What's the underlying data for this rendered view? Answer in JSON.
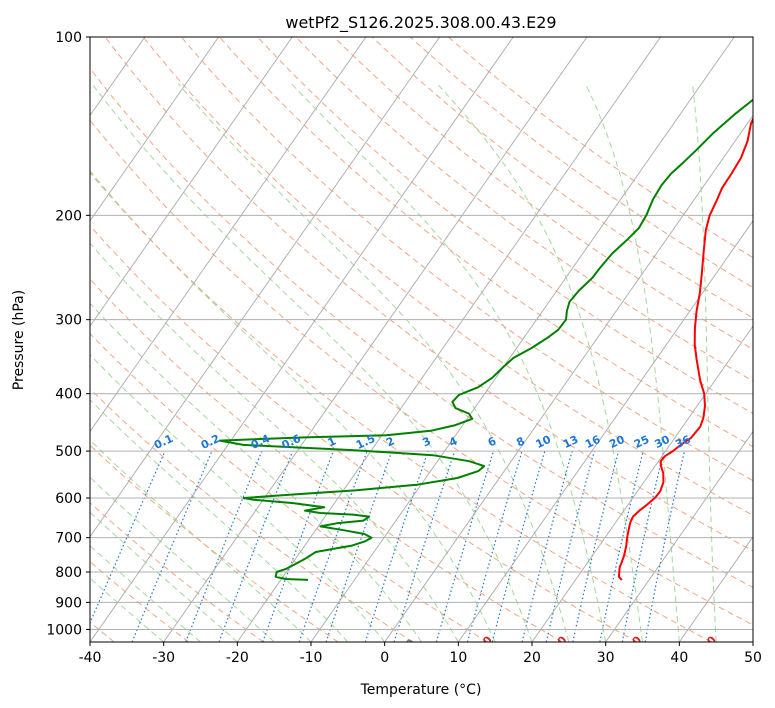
{
  "chart_data": {
    "type": "line",
    "subtype": "skew-t log-p",
    "title": "wetPf2_S126.2025.308.00.43.E29",
    "xlabel": "Temperature (°C)",
    "ylabel": "Pressure (hPa)",
    "xlim": [
      -40,
      50
    ],
    "ylim": [
      1050,
      100
    ],
    "y_scale": "log",
    "x_ticks": [
      -40,
      -30,
      -20,
      -10,
      0,
      10,
      20,
      30,
      40,
      50
    ],
    "y_ticks": [
      100,
      200,
      300,
      400,
      500,
      600,
      700,
      800,
      900,
      1000
    ],
    "grid": true,
    "series": [
      {
        "color": "#ff0000",
        "points": [
          [
            26.3,
            825
          ],
          [
            25.6,
            815
          ],
          [
            25.2,
            800
          ],
          [
            24.8,
            785
          ],
          [
            24.6,
            770
          ],
          [
            24.3,
            750
          ],
          [
            23.6,
            720
          ],
          [
            23.0,
            700
          ],
          [
            22.5,
            680
          ],
          [
            22.0,
            660
          ],
          [
            21.8,
            645
          ],
          [
            22.1,
            630
          ],
          [
            22.6,
            615
          ],
          [
            23.0,
            600
          ],
          [
            23.1,
            585
          ],
          [
            22.7,
            565
          ],
          [
            21.8,
            545
          ],
          [
            20.8,
            530
          ],
          [
            20.3,
            520
          ],
          [
            20.4,
            510
          ],
          [
            21.0,
            500
          ],
          [
            21.4,
            490
          ],
          [
            21.8,
            482
          ],
          [
            22.2,
            475
          ],
          [
            22.3,
            465
          ],
          [
            22.4,
            455
          ],
          [
            22.0,
            440
          ],
          [
            21.1,
            420
          ],
          [
            19.8,
            400
          ],
          [
            18.0,
            380
          ],
          [
            15.5,
            350
          ],
          [
            13.8,
            330
          ],
          [
            12.3,
            310
          ],
          [
            10.9,
            290
          ],
          [
            9.6,
            270
          ],
          [
            8.0,
            250
          ],
          [
            6.2,
            230
          ],
          [
            4.5,
            212
          ],
          [
            3.6,
            200
          ],
          [
            3.2,
            190
          ],
          [
            2.7,
            180
          ],
          [
            2.6,
            170
          ],
          [
            2.4,
            160
          ],
          [
            1.7,
            150
          ],
          [
            0.5,
            140
          ],
          [
            0.0,
            132
          ],
          [
            0.3,
            125
          ],
          [
            0.4,
            115
          ],
          [
            0.2,
            105
          ],
          [
            0.3,
            100
          ]
        ]
      },
      {
        "color": "#008000",
        "points": [
          [
            -16.3,
            825
          ],
          [
            -19.5,
            822
          ],
          [
            -21.0,
            815
          ],
          [
            -21.3,
            800
          ],
          [
            -20.3,
            790
          ],
          [
            -19.5,
            775
          ],
          [
            -18.7,
            760
          ],
          [
            -18.3,
            750
          ],
          [
            -17.9,
            740
          ],
          [
            -15.6,
            730
          ],
          [
            -13.6,
            722
          ],
          [
            -12.2,
            710
          ],
          [
            -11.7,
            700
          ],
          [
            -13.0,
            690
          ],
          [
            -16.2,
            680
          ],
          [
            -19.7,
            670
          ],
          [
            -17.8,
            662
          ],
          [
            -14.4,
            655
          ],
          [
            -14.0,
            645
          ],
          [
            -16.4,
            640
          ],
          [
            -21.0,
            636
          ],
          [
            -23.3,
            630
          ],
          [
            -21.0,
            622
          ],
          [
            -25.6,
            612
          ],
          [
            -31.4,
            604
          ],
          [
            -32.8,
            600
          ],
          [
            -26.7,
            592
          ],
          [
            -18.2,
            582
          ],
          [
            -10.6,
            570
          ],
          [
            -5.7,
            555
          ],
          [
            -3.5,
            540
          ],
          [
            -3.2,
            530
          ],
          [
            -5.7,
            520
          ],
          [
            -11.2,
            508
          ],
          [
            -22.6,
            498
          ],
          [
            -37.9,
            488
          ],
          [
            -41.5,
            480
          ],
          [
            -30.3,
            474
          ],
          [
            -19.4,
            470
          ],
          [
            -13.8,
            462
          ],
          [
            -11.0,
            452
          ],
          [
            -9.3,
            441
          ],
          [
            -10.3,
            432
          ],
          [
            -12.6,
            423
          ],
          [
            -13.6,
            413
          ],
          [
            -13.4,
            402
          ],
          [
            -11.5,
            390
          ],
          [
            -10.5,
            376
          ],
          [
            -10.0,
            360
          ],
          [
            -9.5,
            348
          ],
          [
            -8.0,
            335
          ],
          [
            -6.8,
            322
          ],
          [
            -6.1,
            312
          ],
          [
            -6.0,
            300
          ],
          [
            -6.7,
            290
          ],
          [
            -7.2,
            280
          ],
          [
            -7.0,
            268
          ],
          [
            -6.4,
            255
          ],
          [
            -6.3,
            245
          ],
          [
            -6.0,
            232
          ],
          [
            -5.3,
            220
          ],
          [
            -4.8,
            210
          ],
          [
            -5.0,
            200
          ],
          [
            -5.6,
            188
          ],
          [
            -5.8,
            178
          ],
          [
            -5.6,
            170
          ],
          [
            -5.0,
            163
          ],
          [
            -4.4,
            155
          ],
          [
            -3.7,
            145
          ],
          [
            -2.6,
            135
          ],
          [
            -1.1,
            125
          ],
          [
            -0.6,
            117
          ],
          [
            0.4,
            110
          ],
          [
            0.9,
            105
          ],
          [
            1.2,
            100
          ]
        ]
      }
    ],
    "annotations": {
      "dry_adiabats": [
        "-100",
        "-90",
        "-80",
        "-70",
        "-60",
        "-50",
        "-40",
        "-30",
        "-20",
        "-10",
        "0",
        "10",
        "20",
        "30",
        "40"
      ],
      "mixing_ratios": [
        "0.1",
        "0.2",
        "0.4",
        "0.6",
        "1",
        "1.5",
        "2",
        "3",
        "4",
        "6",
        "8",
        "10",
        "13",
        "16",
        "20",
        "25",
        "30",
        "36"
      ]
    },
    "colors": {
      "temperature": "#ff0000",
      "dewpoint": "#008000",
      "isotherm": "#aaaaaa",
      "dry_adiabat": "#f4a582",
      "moist_adiabat": "#a1d99b",
      "mixing_ratio": "#1f77d4",
      "dry_adiabat_label_cold": "#1f77b4",
      "dry_adiabat_label_warm": "#d62728"
    }
  }
}
